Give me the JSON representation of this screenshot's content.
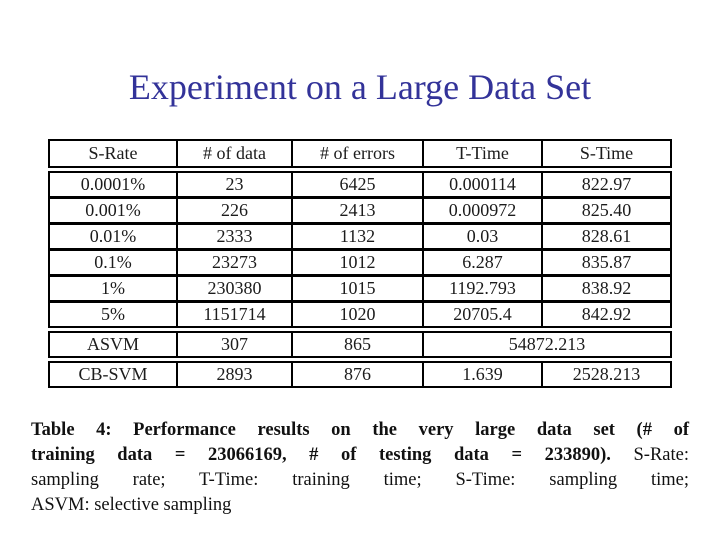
{
  "slide": {
    "title": "Experiment on a Large Data Set",
    "title_color": "#333399",
    "background": "#ffffff"
  },
  "table": {
    "headers": [
      "S-Rate",
      "# of data",
      "# of errors",
      "T-Time",
      "S-Time"
    ],
    "body_rows": [
      [
        "0.0001%",
        "23",
        "6425",
        "0.000114",
        "822.97"
      ],
      [
        "0.001%",
        "226",
        "2413",
        "0.000972",
        "825.40"
      ],
      [
        "0.01%",
        "2333",
        "1132",
        "0.03",
        "828.61"
      ],
      [
        "0.1%",
        "23273",
        "1012",
        "6.287",
        "835.87"
      ],
      [
        "1%",
        "230380",
        "1015",
        "1192.793",
        "838.92"
      ],
      [
        "5%",
        "1151714",
        "1020",
        "20705.4",
        "842.92"
      ]
    ],
    "footer_rows": [
      {
        "cells": [
          "ASVM",
          "307",
          "865",
          "54872.213"
        ],
        "merge_last_two": true
      },
      {
        "cells": [
          "CB-SVM",
          "2893",
          "876",
          "1.639",
          "2528.213"
        ],
        "merge_last_two": false
      }
    ]
  },
  "caption": {
    "lines": [
      {
        "justify": true,
        "segments": [
          {
            "text": "Table 4:  Performance results on the very large data set (# of",
            "bold": true
          }
        ]
      },
      {
        "justify": true,
        "segments": [
          {
            "text": "training data = 23066169, # of testing data = 233890).",
            "bold": true
          },
          {
            "text": "  S-Rate:",
            "bold": false
          }
        ]
      },
      {
        "justify": true,
        "segments": [
          {
            "text": "sampling rate;  T-Time:  training time;  S-Time:  sampling time;",
            "bold": false
          }
        ]
      },
      {
        "justify": false,
        "segments": [
          {
            "text": "ASVM: selective sampling",
            "bold": false
          }
        ]
      }
    ]
  }
}
